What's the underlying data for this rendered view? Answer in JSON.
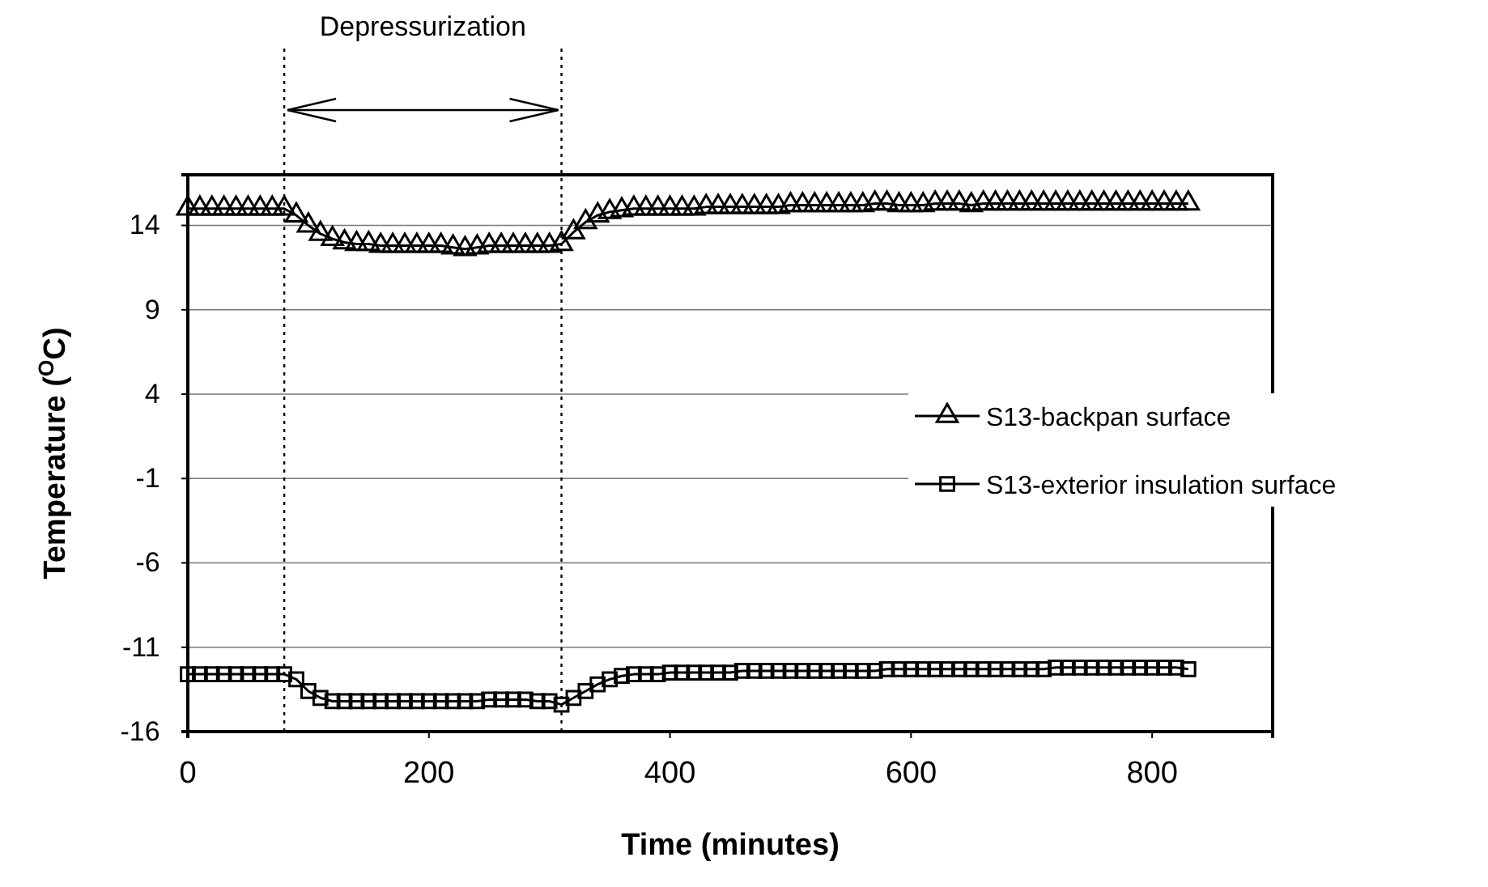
{
  "chart_data": {
    "type": "line",
    "xlabel": "Time (minutes)",
    "ylabel": "Temperature ($^{O}$C)",
    "xlim": [
      0,
      900
    ],
    "ylim": [
      -16,
      17
    ],
    "xticks": [
      0,
      200,
      400,
      600,
      800
    ],
    "yticks": [
      -16,
      -11,
      -6,
      -1,
      4,
      9,
      14
    ],
    "grid": "y",
    "legend": "right",
    "line_style": "solid",
    "x": [
      0,
      10,
      20,
      30,
      40,
      50,
      60,
      70,
      80,
      90,
      100,
      110,
      120,
      130,
      140,
      150,
      160,
      170,
      180,
      190,
      200,
      210,
      220,
      230,
      240,
      250,
      260,
      270,
      280,
      290,
      300,
      310,
      320,
      330,
      340,
      350,
      360,
      370,
      380,
      390,
      400,
      410,
      420,
      430,
      440,
      450,
      460,
      470,
      480,
      490,
      500,
      510,
      520,
      530,
      540,
      550,
      560,
      570,
      580,
      590,
      600,
      610,
      620,
      630,
      640,
      650,
      660,
      670,
      680,
      690,
      700,
      710,
      720,
      730,
      740,
      750,
      760,
      770,
      780,
      790,
      800,
      810,
      820,
      830
    ],
    "series": [
      {
        "name": "S13-backpan surface",
        "color": "#000000",
        "marker": "triangle",
        "values": [
          15.0,
          15.0,
          15.0,
          15.0,
          15.0,
          15.0,
          15.0,
          15.0,
          15.0,
          14.6,
          14.0,
          13.5,
          13.2,
          13.0,
          12.9,
          12.9,
          12.8,
          12.8,
          12.8,
          12.8,
          12.8,
          12.8,
          12.7,
          12.6,
          12.7,
          12.8,
          12.8,
          12.8,
          12.8,
          12.8,
          12.8,
          12.9,
          13.6,
          14.2,
          14.6,
          14.8,
          14.9,
          15.0,
          15.0,
          15.0,
          15.0,
          15.0,
          15.0,
          15.1,
          15.1,
          15.1,
          15.1,
          15.1,
          15.1,
          15.1,
          15.2,
          15.2,
          15.2,
          15.2,
          15.2,
          15.2,
          15.2,
          15.3,
          15.3,
          15.2,
          15.2,
          15.2,
          15.3,
          15.3,
          15.3,
          15.2,
          15.3,
          15.3,
          15.3,
          15.3,
          15.3,
          15.3,
          15.3,
          15.3,
          15.3,
          15.3,
          15.3,
          15.3,
          15.3,
          15.3,
          15.3,
          15.3,
          15.3,
          15.3
        ]
      },
      {
        "name": "S13-exterior insulation surface",
        "color": "#000000",
        "marker": "square",
        "values": [
          -12.6,
          -12.6,
          -12.6,
          -12.6,
          -12.6,
          -12.6,
          -12.6,
          -12.6,
          -12.6,
          -12.9,
          -13.6,
          -14.0,
          -14.2,
          -14.2,
          -14.2,
          -14.2,
          -14.2,
          -14.2,
          -14.2,
          -14.2,
          -14.2,
          -14.2,
          -14.2,
          -14.2,
          -14.2,
          -14.1,
          -14.1,
          -14.1,
          -14.1,
          -14.2,
          -14.2,
          -14.4,
          -14.0,
          -13.6,
          -13.2,
          -12.9,
          -12.7,
          -12.6,
          -12.6,
          -12.6,
          -12.5,
          -12.5,
          -12.5,
          -12.5,
          -12.5,
          -12.5,
          -12.4,
          -12.4,
          -12.4,
          -12.4,
          -12.4,
          -12.4,
          -12.4,
          -12.4,
          -12.4,
          -12.4,
          -12.4,
          -12.4,
          -12.3,
          -12.3,
          -12.3,
          -12.3,
          -12.3,
          -12.3,
          -12.3,
          -12.3,
          -12.3,
          -12.3,
          -12.3,
          -12.3,
          -12.3,
          -12.3,
          -12.2,
          -12.2,
          -12.2,
          -12.2,
          -12.2,
          -12.2,
          -12.2,
          -12.2,
          -12.2,
          -12.2,
          -12.2,
          -12.3
        ]
      }
    ],
    "ref_lines": [
      {
        "axis": "x",
        "value": 80,
        "line_style": "dotted"
      },
      {
        "axis": "x",
        "value": 310,
        "line_style": "dotted"
      }
    ],
    "annotations": [
      "Depressurization"
    ]
  }
}
